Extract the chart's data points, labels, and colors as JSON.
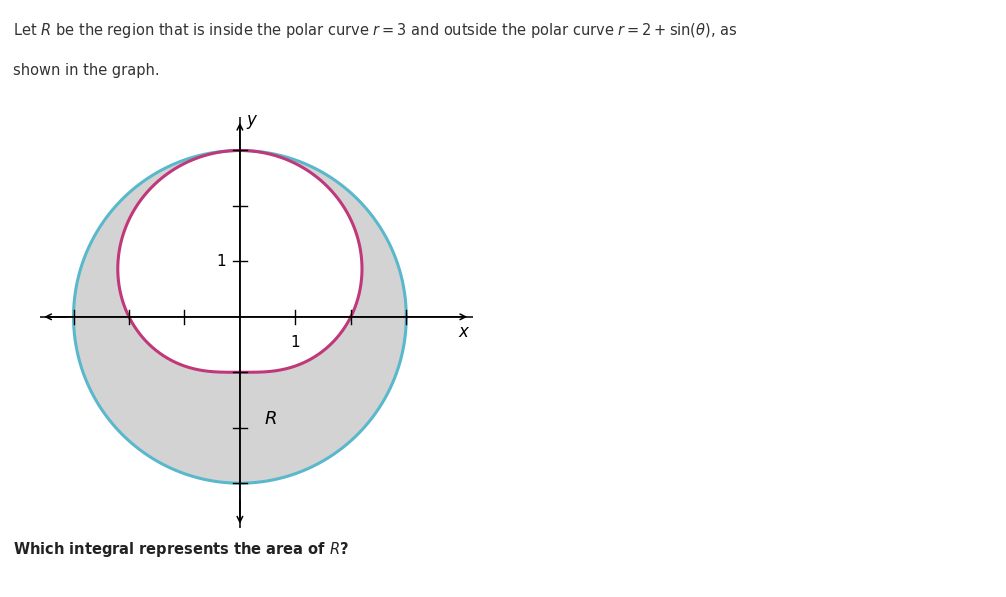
{
  "circle_color": "#5ab8cc",
  "limacon_color": "#c0387a",
  "shade_color": "#d3d3d3",
  "shade_alpha": 1.0,
  "r_circle": 3,
  "figsize": [
    10.06,
    5.97
  ],
  "dpi": 100,
  "axis_xlim": [
    -3.6,
    4.2
  ],
  "axis_ylim": [
    -3.8,
    3.6
  ],
  "circle_lw": 2.2,
  "limacon_lw": 2.2,
  "tick_size": 0.13,
  "arrow_mutation_scale": 10
}
